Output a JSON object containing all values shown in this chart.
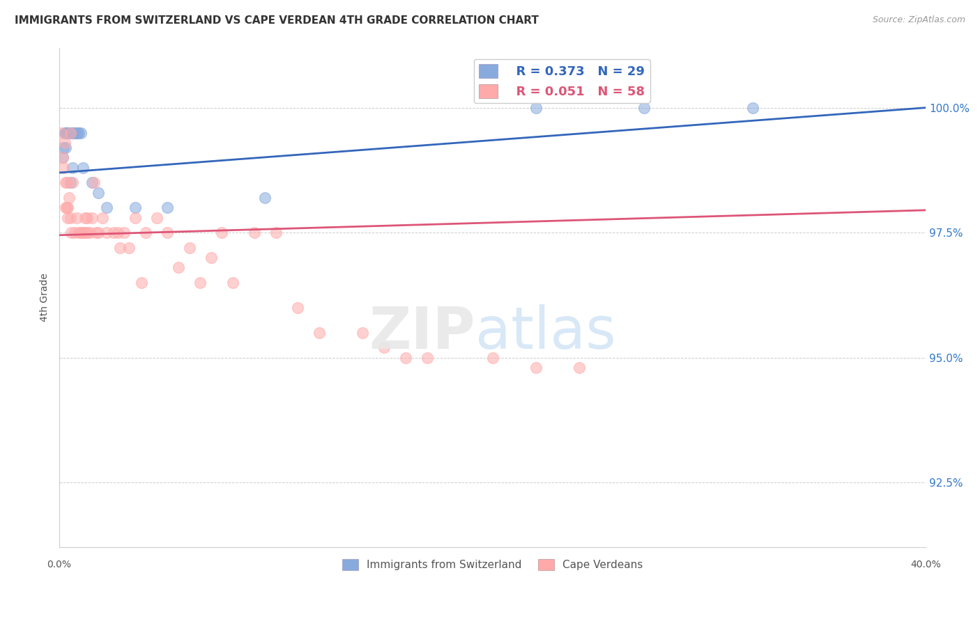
{
  "title": "IMMIGRANTS FROM SWITZERLAND VS CAPE VERDEAN 4TH GRADE CORRELATION CHART",
  "source": "Source: ZipAtlas.com",
  "ylabel": "4th Grade",
  "yticks": [
    92.5,
    95.0,
    97.5,
    100.0
  ],
  "ytick_labels": [
    "92.5%",
    "95.0%",
    "97.5%",
    "100.0%"
  ],
  "xlim": [
    0.0,
    40.0
  ],
  "ylim": [
    91.2,
    101.2
  ],
  "blue_color": "#88AADD",
  "pink_color": "#FFAAAA",
  "blue_line_color": "#3366BB",
  "pink_line_color": "#DD5577",
  "legend_r_blue": "R = 0.373",
  "legend_n_blue": "N = 29",
  "legend_r_pink": "R = 0.051",
  "legend_n_pink": "N = 58",
  "legend_label_blue": "Immigrants from Switzerland",
  "legend_label_pink": "Cape Verdeans",
  "swiss_x": [
    0.15,
    0.2,
    0.25,
    0.3,
    0.35,
    0.4,
    0.5,
    0.55,
    0.6,
    0.65,
    0.7,
    0.8,
    0.85,
    0.9,
    1.0,
    1.1,
    1.5,
    1.8,
    2.2,
    3.5,
    5.0,
    9.5,
    22.0,
    27.0,
    32.0,
    0.3,
    0.45,
    0.5,
    0.6
  ],
  "swiss_y": [
    99.0,
    99.2,
    99.5,
    99.5,
    99.5,
    99.5,
    99.5,
    99.5,
    99.5,
    99.5,
    99.5,
    99.5,
    99.5,
    99.5,
    99.5,
    98.8,
    98.5,
    98.3,
    98.0,
    98.0,
    98.0,
    98.2,
    100.0,
    100.0,
    100.0,
    99.2,
    99.5,
    98.5,
    98.8
  ],
  "cape_x": [
    0.1,
    0.15,
    0.2,
    0.25,
    0.3,
    0.35,
    0.4,
    0.5,
    0.6,
    0.7,
    0.8,
    0.9,
    1.0,
    1.1,
    1.2,
    1.3,
    1.4,
    1.5,
    1.6,
    1.7,
    1.8,
    2.0,
    2.2,
    2.5,
    2.7,
    3.0,
    3.2,
    3.5,
    4.0,
    4.5,
    5.0,
    5.5,
    6.0,
    6.5,
    7.0,
    7.5,
    8.0,
    9.0,
    10.0,
    11.0,
    12.0,
    14.0,
    15.0,
    16.0,
    17.0,
    20.0,
    22.0,
    24.0,
    0.3,
    0.35,
    0.4,
    0.45,
    0.5,
    0.55,
    1.2,
    1.3,
    2.8,
    3.8
  ],
  "cape_y": [
    99.5,
    99.0,
    98.8,
    99.3,
    98.5,
    98.0,
    97.8,
    99.5,
    98.5,
    97.5,
    97.8,
    97.5,
    97.5,
    97.5,
    97.8,
    97.8,
    97.5,
    97.8,
    98.5,
    97.5,
    97.5,
    97.8,
    97.5,
    97.5,
    97.5,
    97.5,
    97.2,
    97.8,
    97.5,
    97.8,
    97.5,
    96.8,
    97.2,
    96.5,
    97.0,
    97.5,
    96.5,
    97.5,
    97.5,
    96.0,
    95.5,
    95.5,
    95.2,
    95.0,
    95.0,
    95.0,
    94.8,
    94.8,
    98.0,
    98.5,
    98.0,
    98.2,
    97.8,
    97.5,
    97.5,
    97.5,
    97.2,
    96.5
  ],
  "background_color": "#FFFFFF",
  "grid_color": "#CCCCCC",
  "swiss_line_x0": 0.0,
  "swiss_line_y0": 98.7,
  "swiss_line_x1": 40.0,
  "swiss_line_y1": 100.0,
  "cape_line_x0": 0.0,
  "cape_line_y0": 97.45,
  "cape_line_x1": 40.0,
  "cape_line_y1": 97.95
}
